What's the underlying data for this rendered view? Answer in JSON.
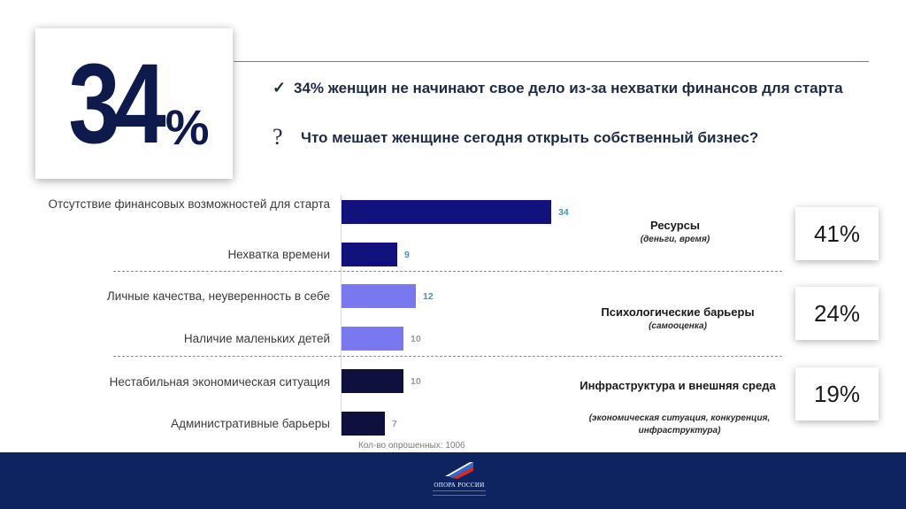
{
  "big_figure": {
    "number": "34",
    "percent_sign": "%"
  },
  "headline": {
    "check": "✓",
    "text": "34% женщин не начинают свое дело из-за нехватки финансов для старта"
  },
  "question": {
    "mark": "?",
    "text": "Что мешает женщине сегодня открыть собственный бизнес?"
  },
  "chart_data": {
    "type": "bar",
    "orientation": "horizontal",
    "categories": [
      "Отсутствие финансовых возможностей для старта",
      "Нехватка времени",
      "Личные качества, неуверенность в себе",
      "Наличие маленьких детей",
      "Нестабильная экономическая ситуация",
      "Административные барьеры"
    ],
    "values": [
      34,
      9,
      12,
      10,
      10,
      7
    ],
    "value_labels": [
      "34",
      "9",
      "12",
      "10",
      "10",
      "7"
    ],
    "bar_colors": [
      "#12127e",
      "#12127e",
      "#7a78ee",
      "#7a78ee",
      "#10103e",
      "#10103e"
    ],
    "label_colors": [
      "#3a9bb0",
      "#3a9bb0",
      "#3a9bb0",
      "#9a9a9a",
      "#9a9a9a",
      "#9a9a9a"
    ],
    "xlim": [
      0,
      40
    ],
    "groups": [
      {
        "title": "Ресурсы",
        "subtitle": "(деньги, время)",
        "share": "41%"
      },
      {
        "title": "Психологические барьеры",
        "subtitle": "(самооценка)",
        "share": "24%"
      },
      {
        "title": "Инфраструктура и внешняя среда",
        "subtitle": "(экономическая ситуация, конкуренция, инфраструктура)",
        "share": "19%"
      }
    ],
    "footnote": "Кол-во опрошенных: 1006"
  },
  "footer": {
    "logo_text": "ОПОРА РОССИИ"
  },
  "colors": {
    "footer_bg": "#0e2460",
    "accent_line": "#8a6aa6",
    "big_number": "#0e1a4b"
  }
}
